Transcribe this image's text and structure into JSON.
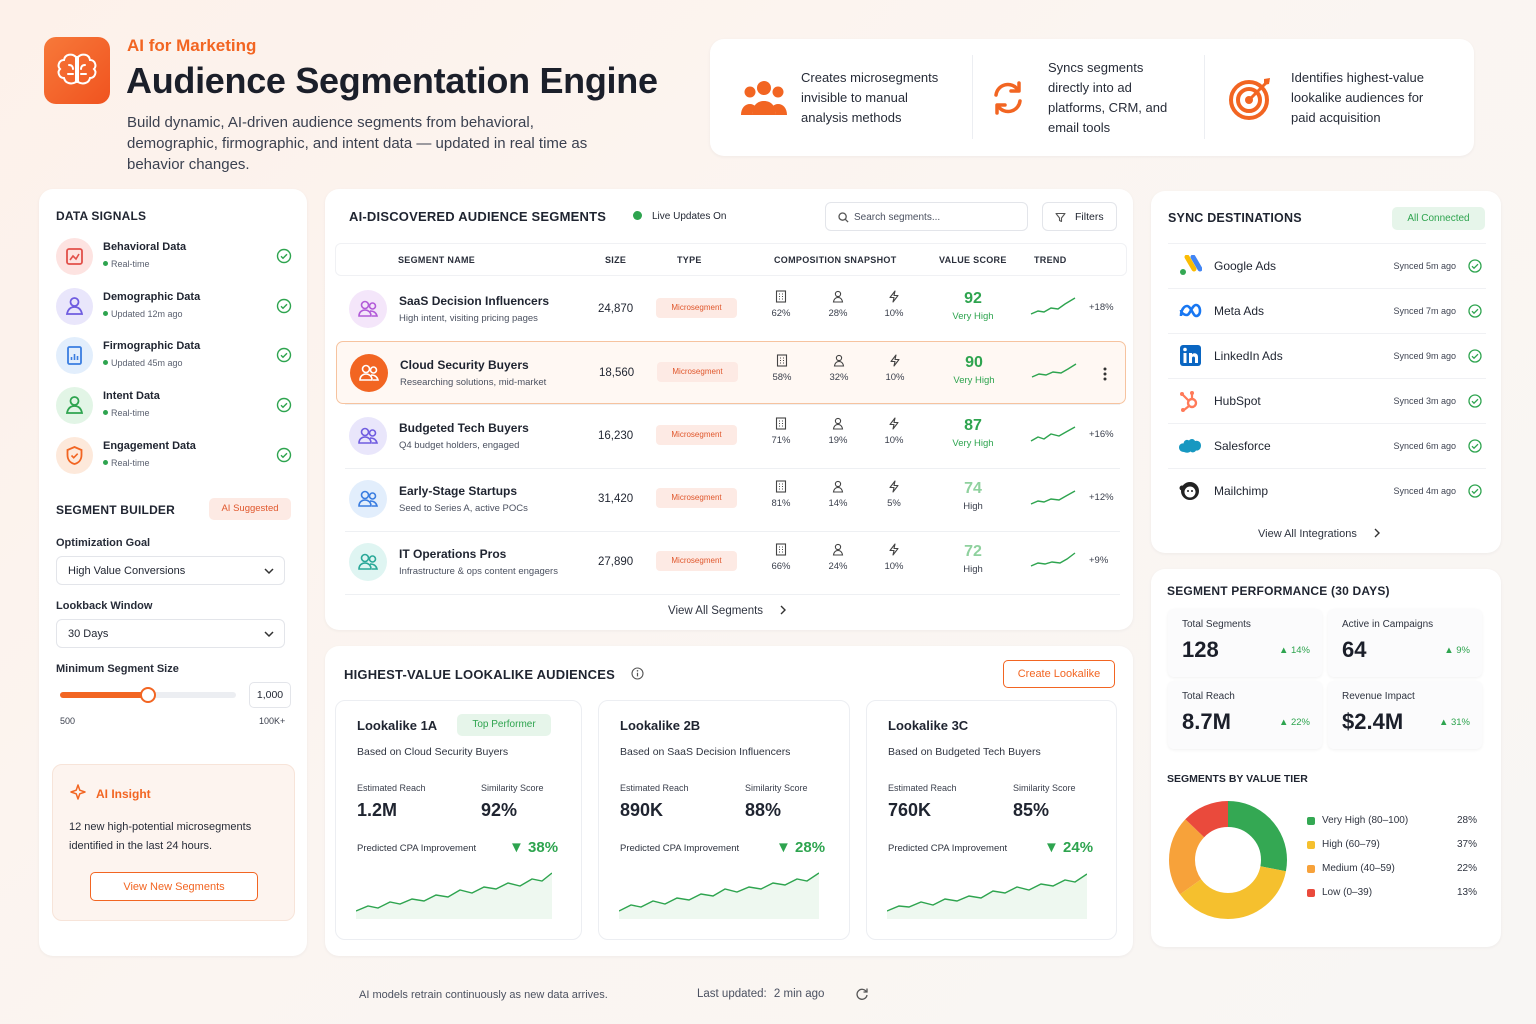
{
  "header": {
    "eyebrow": "AI for Marketing",
    "title": "Audience Segmentation Engine",
    "subtitle": "Build dynamic, AI-driven audience segments from behavioral, demographic, firmographic, and intent data — updated in real time as behavior changes.",
    "features": [
      {
        "icon": "people-group-icon",
        "text": "Creates microsegments invisible to manual analysis methods"
      },
      {
        "icon": "sync-icon",
        "text": "Syncs segments directly into ad platforms, CRM, and email tools"
      },
      {
        "icon": "target-icon",
        "text": "Identifies highest-value lookalike audiences for paid acquisition"
      }
    ]
  },
  "data_signals": {
    "title": "DATA SIGNALS",
    "items": [
      {
        "name": "Behavioral Data",
        "status": "Real-time"
      },
      {
        "name": "Demographic Data",
        "status": "Updated 12m ago"
      },
      {
        "name": "Firmographic Data",
        "status": "Updated 45m ago"
      },
      {
        "name": "Intent Data",
        "status": "Real-time"
      },
      {
        "name": "Engagement Data",
        "status": "Real-time"
      }
    ]
  },
  "segment_builder": {
    "title": "SEGMENT BUILDER",
    "badge": "AI Suggested",
    "goal_label": "Optimization Goal",
    "goal_value": "High Value Conversions",
    "lookback_label": "Lookback Window",
    "lookback_value": "30 Days",
    "min_size_label": "Minimum Segment Size",
    "min_size_value": "1,000",
    "min_size_fraction": 0.5,
    "range_min": "500",
    "range_max": "100K+"
  },
  "insight": {
    "title": "AI Insight",
    "text": "12 new high-potential microsegments identified in the last 24 hours.",
    "button": "View New Segments"
  },
  "segments": {
    "title": "AI-DISCOVERED AUDIENCE SEGMENTS",
    "live": "Live Updates On",
    "search_placeholder": "Search segments...",
    "filters": "Filters",
    "columns": [
      "SEGMENT NAME",
      "SIZE",
      "TYPE",
      "COMPOSITION SNAPSHOT",
      "VALUE SCORE",
      "TREND"
    ],
    "rows": [
      {
        "name": "SaaS Decision Influencers",
        "desc": "High intent, visiting pricing pages",
        "size": "24,870",
        "type": "Microsegment",
        "c1": "62%",
        "c2": "28%",
        "c3": "10%",
        "score": "92",
        "tier": "Very High",
        "trend": "+18%"
      },
      {
        "name": "Cloud Security Buyers",
        "desc": "Researching solutions, mid-market",
        "size": "18,560",
        "type": "Microsegment",
        "c1": "58%",
        "c2": "32%",
        "c3": "10%",
        "score": "90",
        "tier": "Very High",
        "trend": ""
      },
      {
        "name": "Budgeted Tech Buyers",
        "desc": "Q4 budget holders, engaged",
        "size": "16,230",
        "type": "Microsegment",
        "c1": "71%",
        "c2": "19%",
        "c3": "10%",
        "score": "87",
        "tier": "Very High",
        "trend": "+16%"
      },
      {
        "name": "Early-Stage Startups",
        "desc": "Seed to Series A, active POCs",
        "size": "31,420",
        "type": "Microsegment",
        "c1": "81%",
        "c2": "14%",
        "c3": "5%",
        "score": "74",
        "tier": "High",
        "trend": "+12%"
      },
      {
        "name": "IT Operations Pros",
        "desc": "Infrastructure & ops content engagers",
        "size": "27,890",
        "type": "Microsegment",
        "c1": "66%",
        "c2": "24%",
        "c3": "10%",
        "score": "72",
        "tier": "High",
        "trend": "+9%"
      }
    ],
    "view_all": "View All Segments"
  },
  "lookalikes": {
    "title": "HIGHEST-VALUE LOOKALIKE AUDIENCES",
    "create": "Create Lookalike",
    "reach_label": "Estimated Reach",
    "sim_label": "Similarity Score",
    "cpa_label": "Predicted CPA Improvement",
    "cards": [
      {
        "name": "Lookalike 1A",
        "badge": "Top Performer",
        "based": "Based on Cloud Security Buyers",
        "reach": "1.2M",
        "sim": "92%",
        "cpa": "▼ 38%"
      },
      {
        "name": "Lookalike 2B",
        "badge": "",
        "based": "Based on SaaS Decision Influencers",
        "reach": "890K",
        "sim": "88%",
        "cpa": "▼ 28%"
      },
      {
        "name": "Lookalike 3C",
        "badge": "",
        "based": "Based on Budgeted Tech Buyers",
        "reach": "760K",
        "sim": "85%",
        "cpa": "▼ 24%"
      }
    ]
  },
  "sync": {
    "title": "SYNC DESTINATIONS",
    "badge": "All Connected",
    "items": [
      {
        "name": "Google Ads",
        "status": "Synced 5m ago",
        "icon": "google-ads-icon"
      },
      {
        "name": "Meta Ads",
        "status": "Synced 7m ago",
        "icon": "meta-icon"
      },
      {
        "name": "LinkedIn Ads",
        "status": "Synced 9m ago",
        "icon": "linkedin-icon"
      },
      {
        "name": "HubSpot",
        "status": "Synced 3m ago",
        "icon": "hubspot-icon"
      },
      {
        "name": "Salesforce",
        "status": "Synced 6m ago",
        "icon": "salesforce-icon"
      },
      {
        "name": "Mailchimp",
        "status": "Synced 4m ago",
        "icon": "mailchimp-icon"
      }
    ],
    "view_all": "View All Integrations"
  },
  "performance": {
    "title": "SEGMENT PERFORMANCE (30 DAYS)",
    "kpis": [
      {
        "label": "Total Segments",
        "value": "128",
        "delta": "▲ 14%"
      },
      {
        "label": "Active in Campaigns",
        "value": "64",
        "delta": "▲ 9%"
      },
      {
        "label": "Total Reach",
        "value": "8.7M",
        "delta": "▲ 22%"
      },
      {
        "label": "Revenue Impact",
        "value": "$2.4M",
        "delta": "▲ 31%"
      }
    ],
    "tiers_title": "SEGMENTS BY VALUE TIER"
  },
  "chart_data": {
    "type": "pie",
    "title": "SEGMENTS BY VALUE TIER",
    "series": [
      {
        "name": "Very High (80–100)",
        "value": 28,
        "label": "28%",
        "color": "#34a853"
      },
      {
        "name": "High (60–79)",
        "value": 37,
        "label": "37%",
        "color": "#f5c02e"
      },
      {
        "name": "Medium (40–59)",
        "value": 22,
        "label": "22%",
        "color": "#f7a23a"
      },
      {
        "name": "Low (0–39)",
        "value": 13,
        "label": "13%",
        "color": "#ea4a3c"
      }
    ]
  },
  "footer": {
    "note": "AI models retrain continuously as new data arrives.",
    "updated_label": "Last updated:",
    "updated_value": "2 min ago"
  },
  "colors": {
    "accent": "#f26522",
    "positive": "#2ea44f"
  }
}
